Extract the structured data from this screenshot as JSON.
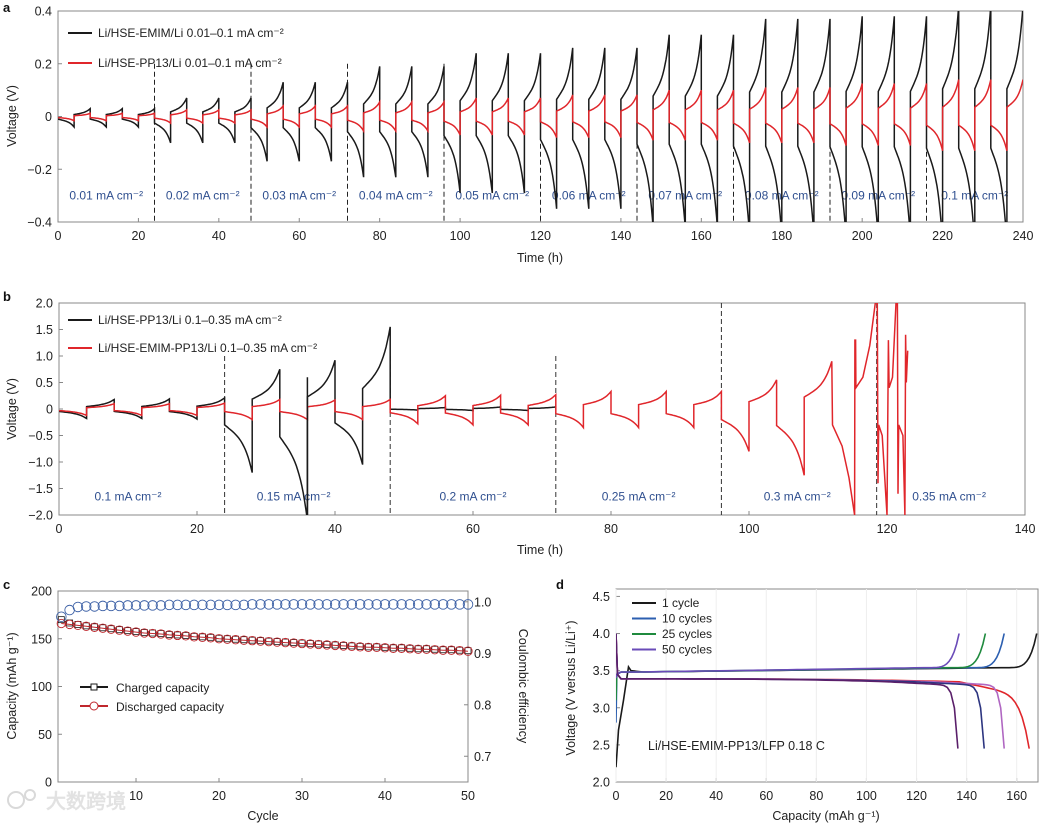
{
  "colors": {
    "black": "#1a1a1a",
    "red": "#e0262b",
    "blue_ce": "#3d61a6",
    "red_dis": "#c0272d",
    "seg_label": "#2f4f8f"
  },
  "watermark": "大数跨境",
  "chart_data": [
    {
      "panel": "a",
      "type": "line",
      "xlabel": "Time (h)",
      "ylabel": "Voltage (V)",
      "xlim": [
        0,
        240
      ],
      "ylim": [
        -0.4,
        0.4
      ],
      "xticks": [
        0,
        20,
        40,
        60,
        80,
        100,
        120,
        140,
        160,
        180,
        200,
        220,
        240
      ],
      "yticks": [
        -0.4,
        -0.2,
        0,
        0.2,
        0.4
      ],
      "ytick_labels": [
        "−0.4",
        "−0.2",
        "0",
        "0.2",
        "0.4"
      ],
      "cycle_hours": 8,
      "dividers": [
        24,
        48,
        72,
        96,
        120,
        144,
        168,
        192,
        216
      ],
      "segment_labels": [
        "0.01 mA cm⁻²",
        "0.02 mA cm⁻²",
        "0.03 mA cm⁻²",
        "0.04 mA cm⁻²",
        "0.05 mA cm⁻²",
        "0.06 mA cm⁻²",
        "0.07 mA cm⁻²",
        "0.08 mA cm⁻²",
        "0.09 mA cm⁻²",
        "0.1 mA cm⁻²"
      ],
      "legend_position": "top-left",
      "series": [
        {
          "name": "Li/HSE-EMIM/Li 0.01–0.1 mA cm⁻²",
          "color": "#1a1a1a",
          "segment_peaks": [
            [
              0.03,
              -0.04
            ],
            [
              0.07,
              -0.1
            ],
            [
              0.13,
              -0.17
            ],
            [
              0.19,
              -0.23
            ],
            [
              0.24,
              -0.29
            ],
            [
              0.26,
              -0.35
            ],
            [
              0.31,
              -0.42
            ],
            [
              0.37,
              -0.45
            ],
            [
              0.38,
              -0.46
            ],
            [
              0.42,
              -0.48
            ]
          ]
        },
        {
          "name": "Li/HSE-PP13/Li 0.01–0.1 mA cm⁻²",
          "color": "#e0262b",
          "segment_peaks": [
            [
              0.012,
              -0.016
            ],
            [
              0.025,
              -0.025
            ],
            [
              0.04,
              -0.04
            ],
            [
              0.055,
              -0.055
            ],
            [
              0.07,
              -0.07
            ],
            [
              0.082,
              -0.08
            ],
            [
              0.1,
              -0.09
            ],
            [
              0.11,
              -0.1
            ],
            [
              0.125,
              -0.11
            ],
            [
              0.14,
              -0.13
            ]
          ]
        }
      ]
    },
    {
      "panel": "b",
      "type": "line",
      "xlabel": "Time (h)",
      "ylabel": "Voltage (V)",
      "xlim": [
        0,
        140
      ],
      "ylim": [
        -2.0,
        2.0
      ],
      "xticks": [
        0,
        20,
        40,
        60,
        80,
        100,
        120,
        140
      ],
      "yticks": [
        -2.0,
        -1.5,
        -1.0,
        -0.5,
        0,
        0.5,
        1.0,
        1.5,
        2.0
      ],
      "ytick_labels": [
        "−2.0",
        "−1.5",
        "−1.0",
        "−0.5",
        "0",
        "0.5",
        "1.0",
        "1.5",
        "2.0"
      ],
      "cycle_hours": 8,
      "dividers": [
        24,
        48,
        72,
        96,
        118.5
      ],
      "segment_labels": [
        "0.1 mA cm⁻²",
        "0.15 mA cm⁻²",
        "0.2 mA cm⁻²",
        "0.25 mA cm⁻²",
        "0.3 mA cm⁻²",
        "0.35 mA cm⁻²"
      ],
      "segment_label_x": [
        10,
        34,
        60,
        84,
        107,
        129
      ],
      "legend_position": "top-left",
      "series": [
        {
          "name": "Li/HSE-PP13/Li 0.1–0.35 mA cm⁻²",
          "color": "#1a1a1a",
          "cycle_peaks": [
            [
              0.18,
              -0.18
            ],
            [
              0.19,
              -0.18
            ],
            [
              0.21,
              -0.19
            ],
            [
              0.75,
              -1.2
            ],
            [
              0.92,
              -2.1
            ],
            [
              1.55,
              -1.05
            ],
            [
              0.03,
              -0.02
            ],
            [
              0.04,
              -0.03
            ],
            [
              0.04,
              -0.03
            ]
          ]
        },
        {
          "name": "Li/HSE-EMIM-PP13/Li 0.1–0.35 mA cm⁻²",
          "color": "#e0262b",
          "cycle_peaks": [
            [
              0.1,
              -0.12
            ],
            [
              0.1,
              -0.12
            ],
            [
              0.11,
              -0.12
            ],
            [
              0.18,
              -0.2
            ],
            [
              0.17,
              -0.2
            ],
            [
              0.18,
              -0.2
            ],
            [
              0.25,
              -0.28
            ],
            [
              0.26,
              -0.3
            ],
            [
              0.27,
              -0.3
            ],
            [
              0.33,
              -0.35
            ],
            [
              0.33,
              -0.35
            ],
            [
              0.33,
              -0.35
            ],
            [
              0.55,
              -0.8
            ],
            [
              0.9,
              -1.25
            ]
          ],
          "tail_points": [
            [
              112,
              0.9
            ],
            [
              112.1,
              -0.3
            ],
            [
              113.5,
              -0.7
            ],
            [
              114.5,
              -1.3
            ],
            [
              115.3,
              -2.0
            ],
            [
              115.35,
              1.3
            ],
            [
              115.45,
              1.3
            ],
            [
              115.5,
              0.4
            ],
            [
              116.5,
              0.6
            ],
            [
              117.5,
              1.2
            ],
            [
              118.3,
              2.0
            ],
            [
              118.6,
              2.0
            ],
            [
              118.7,
              -1.4
            ],
            [
              118.8,
              -0.3
            ],
            [
              119.3,
              -0.5
            ],
            [
              120,
              -2.0
            ],
            [
              120.2,
              1.3
            ],
            [
              120.3,
              0.4
            ],
            [
              120.8,
              0.6
            ],
            [
              121.3,
              2.0
            ],
            [
              121.5,
              2.0
            ],
            [
              121.6,
              -1.6
            ],
            [
              121.7,
              -0.3
            ],
            [
              122.3,
              -0.5
            ],
            [
              122.6,
              -2.0
            ],
            [
              122.7,
              1.4
            ],
            [
              122.8,
              0.5
            ],
            [
              123,
              1.1
            ]
          ]
        }
      ]
    },
    {
      "panel": "c",
      "type": "scatter",
      "xlabel": "Cycle",
      "ylabel": "Capacity (mAh g⁻¹)",
      "ylabel_right": "Coulombic efficiency",
      "xlim": [
        0.6,
        50
      ],
      "ylim": [
        0,
        200
      ],
      "ylim_right": [
        0.65,
        1.021
      ],
      "xticks": [
        10,
        20,
        30,
        40,
        50
      ],
      "yticks": [
        0,
        50,
        100,
        150,
        200
      ],
      "yticks_right": [
        0.7,
        0.8,
        0.9,
        1.0
      ],
      "ytick_right_labels": [
        "0.7",
        "0.8",
        "0.9",
        "1.0"
      ],
      "legend_position": "center-left",
      "series": [
        {
          "name": "Charged capacity",
          "color": "#1a1a1a",
          "marker": "square",
          "values": [
            170,
            166.5,
            165,
            163.5,
            162.5,
            161.5,
            160.5,
            159.5,
            158.5,
            157.5,
            156.5,
            156,
            155.5,
            154.5,
            154,
            153.5,
            152.5,
            152,
            151.5,
            150.5,
            150,
            149.5,
            149,
            148.5,
            148,
            147.5,
            147,
            146.5,
            146,
            145.5,
            145,
            144.5,
            144,
            143.5,
            143,
            142.5,
            142,
            141.5,
            141.5,
            141,
            140.5,
            140.5,
            140,
            139.5,
            139.5,
            139,
            138.5,
            138.5,
            138,
            137.5
          ]
        },
        {
          "name": "Discharged capacity",
          "color": "#c0272d",
          "marker": "circle",
          "values": [
            166,
            165,
            164,
            163,
            162,
            161,
            160,
            159,
            158,
            157,
            156,
            155.5,
            155,
            154,
            153.5,
            153,
            152,
            151.5,
            151,
            150,
            149.5,
            149,
            148.5,
            148,
            147.5,
            147,
            146.5,
            146,
            145.5,
            145,
            144.5,
            144,
            143.5,
            143,
            142.5,
            142,
            141.5,
            141,
            141,
            140.5,
            140,
            140,
            139.5,
            139,
            139,
            138.5,
            138,
            138,
            137.5,
            137
          ]
        },
        {
          "name": "Coulombic efficiency",
          "color": "#3d61a6",
          "marker": "circle",
          "axis": "right",
          "values": [
            0.971,
            0.984,
            0.99,
            0.991,
            0.991,
            0.992,
            0.992,
            0.992,
            0.993,
            0.993,
            0.993,
            0.993,
            0.993,
            0.994,
            0.994,
            0.994,
            0.994,
            0.994,
            0.994,
            0.994,
            0.994,
            0.994,
            0.994,
            0.995,
            0.995,
            0.995,
            0.995,
            0.995,
            0.995,
            0.995,
            0.995,
            0.995,
            0.995,
            0.995,
            0.995,
            0.995,
            0.995,
            0.995,
            0.995,
            0.995,
            0.995,
            0.995,
            0.995,
            0.995,
            0.995,
            0.995,
            0.995,
            0.995,
            0.995,
            0.995
          ]
        }
      ]
    },
    {
      "panel": "d",
      "type": "line",
      "xlabel": "Capacity (mAh g⁻¹)",
      "ylabel": "Voltage (V versus Li/Li⁺)",
      "xlim": [
        0,
        168.5
      ],
      "ylim": [
        2.0,
        4.6
      ],
      "xticks": [
        0,
        20,
        40,
        60,
        80,
        100,
        120,
        140,
        160
      ],
      "yticks": [
        2.0,
        2.5,
        3.0,
        3.5,
        4.0,
        4.5
      ],
      "ytick_labels": [
        "2.0",
        "2.5",
        "3.0",
        "3.5",
        "4.0",
        "4.5"
      ],
      "annotation": "Li/HSE-EMIM-PP13/LFP 0.18 C",
      "legend_position": "top-left",
      "series": [
        {
          "name": "1 cycle",
          "color": "#1a1a1a",
          "discharge_color": "#e0262b",
          "charge_capacity": 168,
          "discharge_capacity": 165
        },
        {
          "name": "10 cycles",
          "color": "#2c5fb0",
          "discharge_color": "#b067c2",
          "charge_capacity": 155,
          "discharge_capacity": 155
        },
        {
          "name": "25 cycles",
          "color": "#1f8a3e",
          "discharge_color": "#2d3580",
          "charge_capacity": 147.5,
          "discharge_capacity": 147
        },
        {
          "name": "50 cycles",
          "color": "#6a4bb8",
          "discharge_color": "#5a1f6a",
          "charge_capacity": 137,
          "discharge_capacity": 136.5
        }
      ]
    }
  ],
  "panels": {
    "a": "a",
    "b": "b",
    "c": "c",
    "d": "d"
  }
}
